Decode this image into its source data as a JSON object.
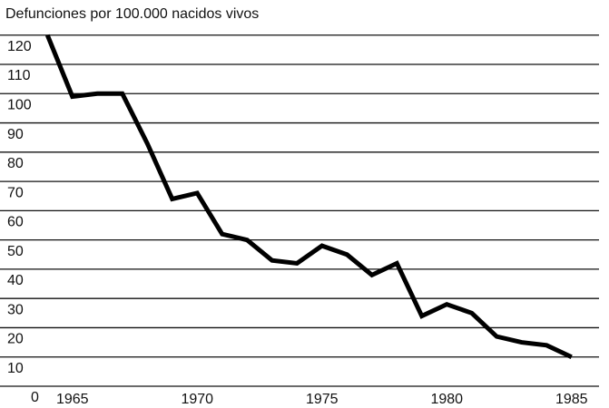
{
  "chart_data": {
    "type": "line",
    "title": "Defunciones por 100.000 nacidos vivos",
    "x": [
      1964,
      1965,
      1966,
      1967,
      1968,
      1969,
      1970,
      1971,
      1972,
      1973,
      1974,
      1975,
      1976,
      1977,
      1978,
      1979,
      1980,
      1981,
      1982,
      1983,
      1984,
      1985
    ],
    "series": [
      {
        "color": "#000000",
        "values": [
          120,
          99,
          100,
          100,
          83,
          64,
          66,
          52,
          50,
          43,
          42,
          48,
          45,
          38,
          42,
          24,
          28,
          25,
          17,
          15,
          14,
          10
        ]
      }
    ],
    "xlim": [
      1962.1,
      1986.1
    ],
    "xticks": [
      1965,
      1970,
      1975,
      1980,
      1985
    ],
    "ylim": [
      0,
      132
    ],
    "yticks": [
      0,
      10,
      20,
      30,
      40,
      50,
      60,
      70,
      80,
      90,
      100,
      110,
      120
    ],
    "grid": true
  }
}
